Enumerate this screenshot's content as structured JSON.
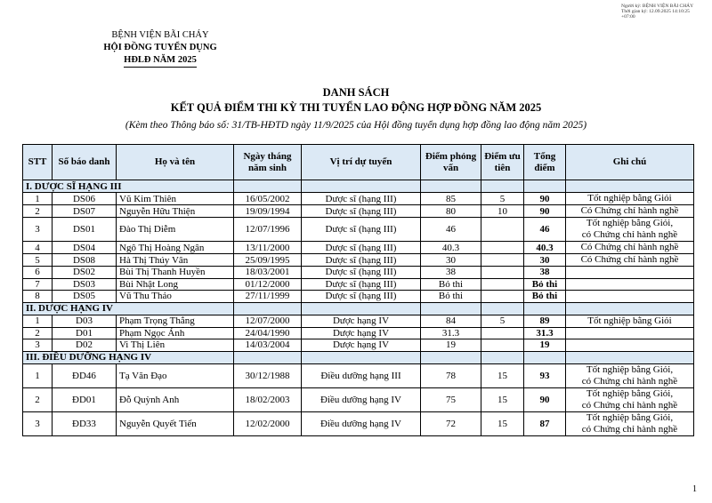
{
  "signature": {
    "line1": "Người ký: BỆNH VIỆN BÃI CHÁY",
    "line2": "Thời gian ký: 12.09.2025 14:10:25",
    "line3": "+07:00"
  },
  "org": {
    "name": "BỆNH VIỆN BÃI CHÁY",
    "council": "HỘI ĐỒNG TUYỂN DỤNG",
    "year": "HĐLĐ NĂM 2025"
  },
  "heading": {
    "title": "DANH SÁCH",
    "subtitle": "KẾT QUẢ ĐIỂM THI KỲ THI TUYỂN LAO ĐỘNG HỢP ĐỒNG NĂM 2025",
    "note": "(Kèm theo Thông báo số: 31/TB-HĐTD ngày 11/9/2025 của Hội đồng tuyển dụng hợp đồng lao động năm 2025)"
  },
  "table": {
    "headers": [
      "STT",
      "Số báo danh",
      "Họ và tên",
      "Ngày tháng năm sinh",
      "Vị trí dự tuyển",
      "Điểm phỏng vấn",
      "Điểm ưu tiên",
      "Tổng điểm",
      "Ghi chú"
    ],
    "sections": [
      {
        "title": "I. DƯỢC SĨ HẠNG III",
        "rows": [
          [
            "1",
            "DS06",
            "Vũ Kim Thiên",
            "16/05/2002",
            "Dược sĩ (hạng III)",
            "85",
            "5",
            "90",
            "Tốt nghiệp bằng Giỏi"
          ],
          [
            "2",
            "DS07",
            "Nguyễn Hữu Thiện",
            "19/09/1994",
            "Dược sĩ (hạng III)",
            "80",
            "10",
            "90",
            "Có Chứng chỉ hành nghề"
          ],
          [
            "3",
            "DS01",
            "Đào Thị Diễm",
            "12/07/1996",
            "Dược sĩ (hạng III)",
            "46",
            "",
            "46",
            "Tốt nghiệp bằng Giỏi, có Chứng chỉ hành nghề"
          ],
          [
            "4",
            "DS04",
            "Ngô Thị Hoàng Ngân",
            "13/11/2000",
            "Dược sĩ (hạng III)",
            "40.3",
            "",
            "40.3",
            "Có Chứng chỉ hành nghề"
          ],
          [
            "5",
            "DS08",
            "Hà Thị Thúy Vân",
            "25/09/1995",
            "Dược sĩ (hạng III)",
            "30",
            "",
            "30",
            "Có Chứng chỉ hành nghề"
          ],
          [
            "6",
            "DS02",
            "Bùi Thị Thanh Huyền",
            "18/03/2001",
            "Dược sĩ (hạng III)",
            "38",
            "",
            "38",
            ""
          ],
          [
            "7",
            "DS03",
            "Bùi Nhật Long",
            "01/12/2000",
            "Dược sĩ (hạng III)",
            "Bỏ thi",
            "",
            "Bỏ thi",
            ""
          ],
          [
            "8",
            "DS05",
            "Vũ Thu Thảo",
            "27/11/1999",
            "Dược sĩ (hạng III)",
            "Bỏ thi",
            "",
            "Bỏ thi",
            ""
          ]
        ]
      },
      {
        "title": "II. DƯỢC HẠNG IV",
        "rows": [
          [
            "1",
            "D03",
            "Phạm Trọng Thắng",
            "12/07/2000",
            "Dược hạng IV",
            "84",
            "5",
            "89",
            "Tốt nghiệp bằng Giỏi"
          ],
          [
            "2",
            "D01",
            "Phạm Ngọc Ánh",
            "24/04/1990",
            "Dược hạng IV",
            "31.3",
            "",
            "31.3",
            ""
          ],
          [
            "3",
            "D02",
            "Vi Thị Liên",
            "14/03/2004",
            "Dược hạng IV",
            "19",
            "",
            "19",
            ""
          ]
        ]
      },
      {
        "title": "III. ĐIỀU DƯỠNG HẠNG IV",
        "rows": [
          [
            "1",
            "ĐD46",
            "Tạ Văn Đạo",
            "30/12/1988",
            "Điều dưỡng hạng III",
            "78",
            "15",
            "93",
            "Tốt nghiệp bằng Giỏi, có Chứng chỉ hành nghề"
          ],
          [
            "2",
            "ĐD01",
            "Đỗ Quỳnh Anh",
            "18/02/2003",
            "Điều dưỡng hạng IV",
            "75",
            "15",
            "90",
            "Tốt nghiệp bằng Giỏi, có Chứng chỉ hành nghề"
          ],
          [
            "3",
            "ĐD33",
            "Nguyễn Quyết Tiến",
            "12/02/2000",
            "Điều dưỡng hạng IV",
            "72",
            "15",
            "87",
            "Tốt nghiệp bằng Giỏi, có Chứng chỉ hành nghề"
          ]
        ]
      }
    ]
  },
  "page_number": "1"
}
